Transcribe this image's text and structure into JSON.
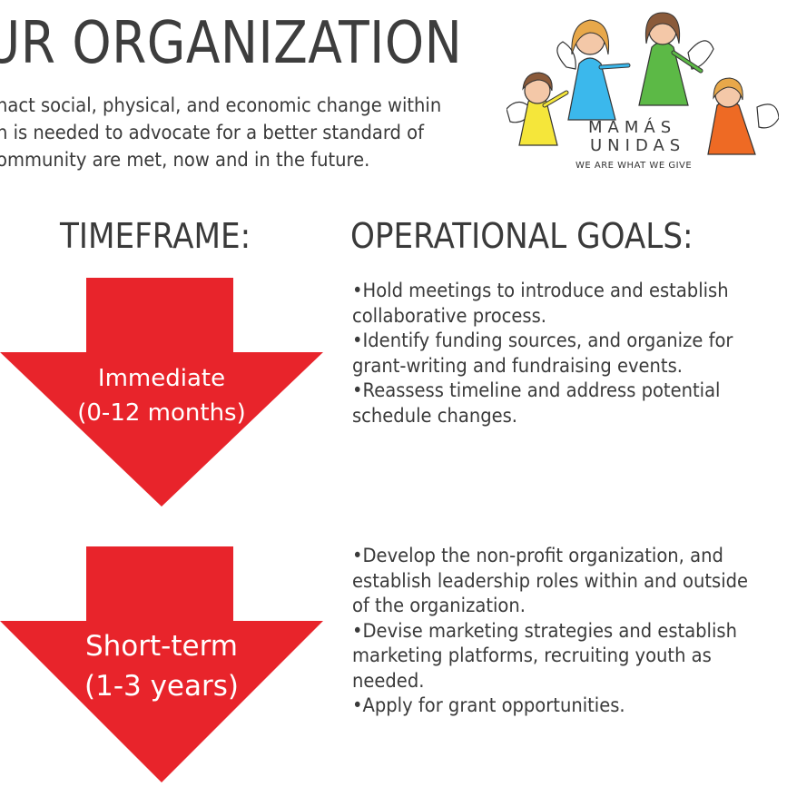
{
  "header": {
    "title": "UR ORGANIZATION",
    "intro_lines": [
      "nact social, physical, and economic change within",
      "n is needed to advocate for a better standard of",
      "ommunity are met, now and in the future."
    ]
  },
  "logo": {
    "name_line1": "MAMÁS",
    "name_line2": "UNIDAS",
    "tagline": "WE ARE WHAT WE GIVE",
    "figure_colors": [
      "#f5e63a",
      "#3bb8ec",
      "#5cb946",
      "#ee6a24"
    ]
  },
  "columns": {
    "timeframe_heading": "TIMEFRAME:",
    "goals_heading": "OPERATIONAL GOALS:"
  },
  "arrow_color": "#e8242b",
  "phases": [
    {
      "label_line1": "Immediate",
      "label_line2": "(0-12 months)",
      "goals": [
        "•Hold meetings to introduce and establish",
        "collaborative process.",
        "•Identify funding sources, and organize for",
        "grant-writing and fundraising events.",
        "•Reassess timeline and address potential",
        "schedule changes."
      ]
    },
    {
      "label_line1": "Short-term",
      "label_line2": "(1-3 years)",
      "goals": [
        "•Develop the non-profit organization, and",
        "establish leadership roles within and outside",
        "of the organization.",
        "•Devise marketing strategies and establish",
        "marketing platforms, recruiting youth as",
        "needed.",
        "•Apply for grant opportunities."
      ]
    }
  ]
}
